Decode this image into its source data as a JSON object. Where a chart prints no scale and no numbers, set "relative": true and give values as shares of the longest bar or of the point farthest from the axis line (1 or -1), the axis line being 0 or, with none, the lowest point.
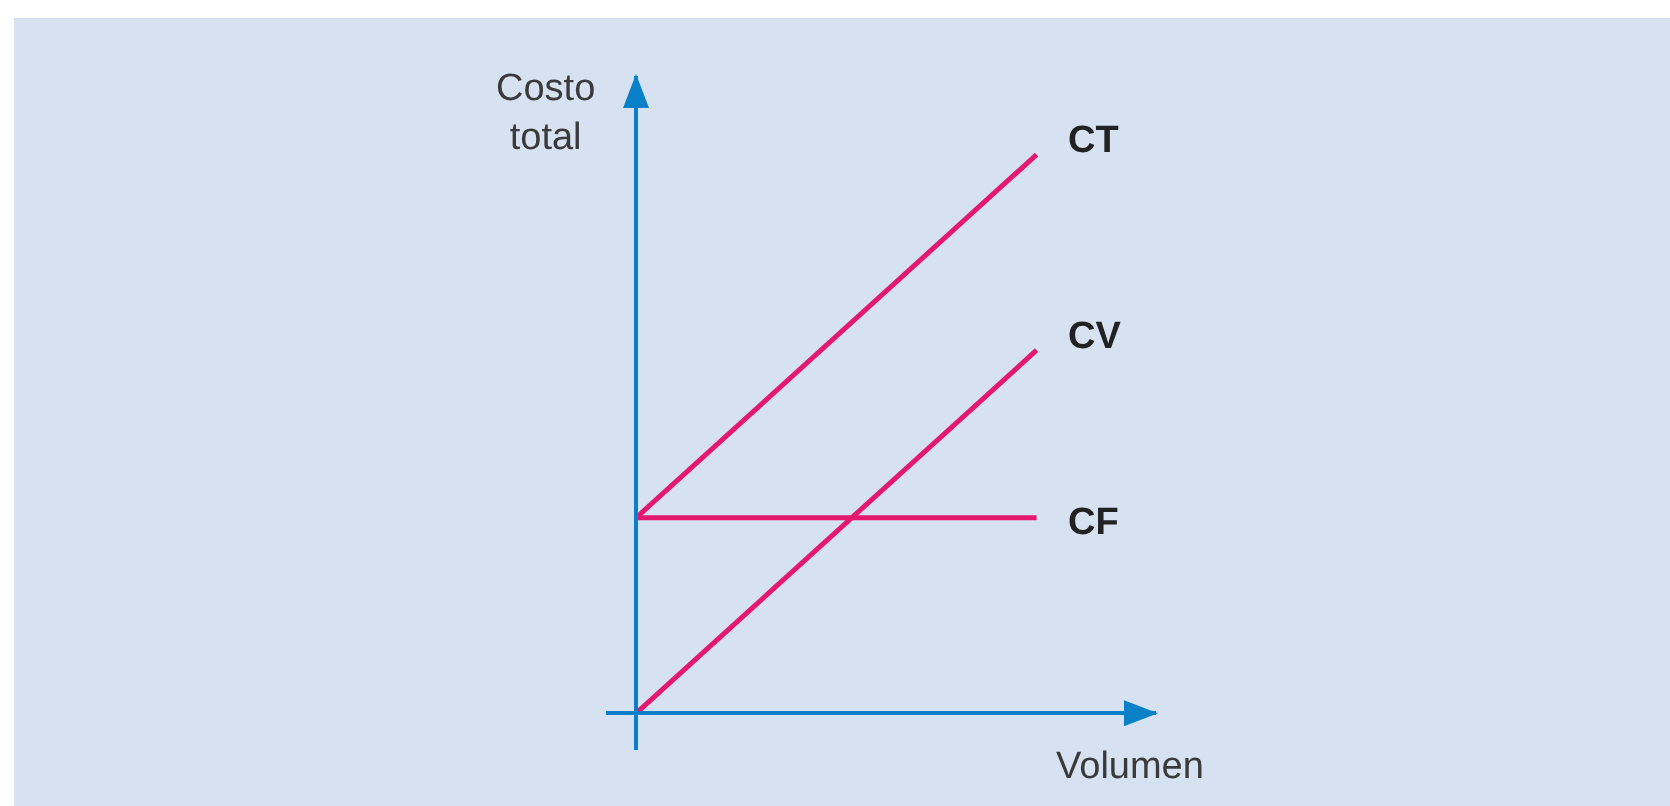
{
  "chart_data": {
    "type": "line",
    "relative": true,
    "xlabel": "Volumen",
    "ylabel": "Costo\ntotal",
    "marker": "none",
    "line_style": "solid",
    "categories": [
      null,
      null
    ],
    "series": [
      {
        "name": "CT",
        "color": "#e5186f",
        "values": [
          0.35,
          1
        ]
      },
      {
        "name": "CV",
        "color": "#e5186f",
        "values": [
          0,
          0.65
        ]
      },
      {
        "name": "CF",
        "color": "#e5186f",
        "values": [
          0.35,
          0.35
        ]
      }
    ]
  }
}
